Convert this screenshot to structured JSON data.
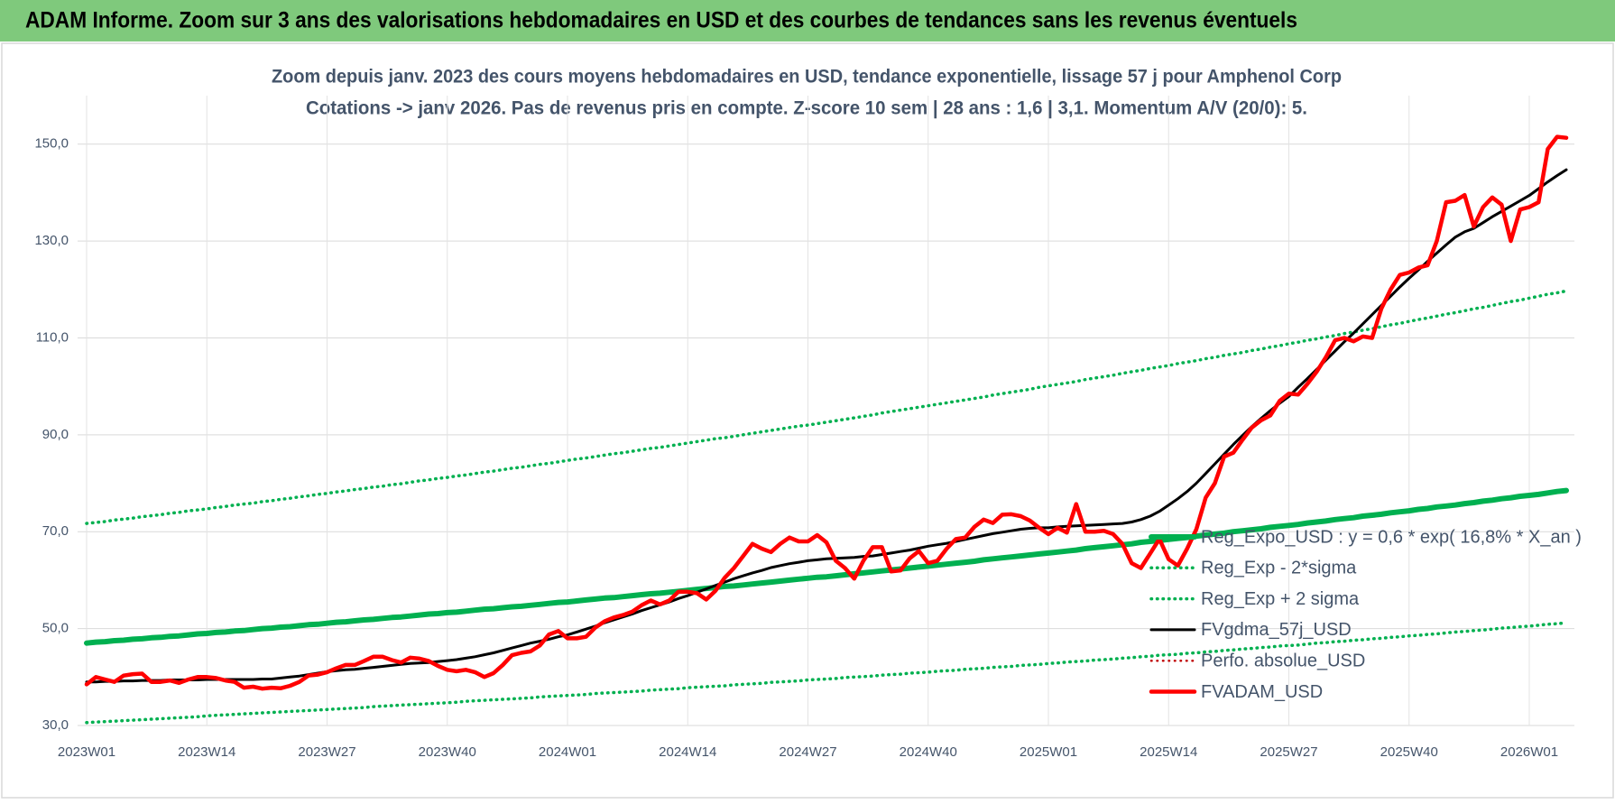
{
  "header": {
    "title": "ADAM Informe. Zoom sur 3 ans des valorisations hebdomadaires en USD et des courbes de tendances sans les revenus éventuels"
  },
  "chart_data": {
    "type": "line",
    "title": "Zoom depuis janv. 2023 des cours moyens hebdomadaires en USD, tendance exponentielle, lissage 57 j pour Amphenol Corp",
    "subtitle": "Cotations -> janv 2026. Pas de revenus pris en compte. Z-score 10 sem | 28 ans : 1,6 | 3,1. Momentum A/V (20/0): 5.",
    "categories": [
      "2023W01",
      null,
      null,
      null,
      null,
      null,
      null,
      null,
      null,
      null,
      null,
      null,
      null,
      "2023W14",
      null,
      null,
      null,
      null,
      null,
      null,
      null,
      null,
      null,
      null,
      null,
      null,
      "2023W27",
      null,
      null,
      null,
      null,
      null,
      null,
      null,
      null,
      null,
      null,
      null,
      null,
      "2023W40",
      null,
      null,
      null,
      null,
      null,
      null,
      null,
      null,
      null,
      null,
      null,
      null,
      "2024W01",
      null,
      null,
      null,
      null,
      null,
      null,
      null,
      null,
      null,
      null,
      null,
      null,
      "2024W14",
      null,
      null,
      null,
      null,
      null,
      null,
      null,
      null,
      null,
      null,
      null,
      null,
      "2024W27",
      null,
      null,
      null,
      null,
      null,
      null,
      null,
      null,
      null,
      null,
      null,
      null,
      "2024W40",
      null,
      null,
      null,
      null,
      null,
      null,
      null,
      null,
      null,
      null,
      null,
      null,
      "2025W01",
      null,
      null,
      null,
      null,
      null,
      null,
      null,
      null,
      null,
      null,
      null,
      null,
      "2025W14",
      null,
      null,
      null,
      null,
      null,
      null,
      null,
      null,
      null,
      null,
      null,
      null,
      "2025W27",
      null,
      null,
      null,
      null,
      null,
      null,
      null,
      null,
      null,
      null,
      null,
      null,
      "2025W40",
      null,
      null,
      null,
      null,
      null,
      null,
      null,
      null,
      null,
      null,
      null,
      null,
      "2026W01",
      null,
      null,
      null,
      null
    ],
    "ylim": [
      30,
      160
    ],
    "yticks": [
      {
        "value": 30,
        "label": "30,0"
      },
      {
        "value": 50,
        "label": "50,0"
      },
      {
        "value": 70,
        "label": "70,0"
      },
      {
        "value": 90,
        "label": "90,0"
      },
      {
        "value": 110,
        "label": "110,0"
      },
      {
        "value": 130,
        "label": "130,0"
      },
      {
        "value": 150,
        "label": "150,0"
      }
    ],
    "grid": true,
    "legend": "right",
    "series": [
      {
        "name": "Reg_Expo_USD : y = 0,6 * exp( 16,8% *  X_an )",
        "color": "#00b050",
        "line_style": "solid",
        "values": [
          47.0,
          47.2,
          47.3,
          47.5,
          47.6,
          47.8,
          47.9,
          48.1,
          48.2,
          48.4,
          48.5,
          48.7,
          48.9,
          49.0,
          49.2,
          49.3,
          49.5,
          49.6,
          49.8,
          50.0,
          50.1,
          50.3,
          50.4,
          50.6,
          50.8,
          50.9,
          51.1,
          51.3,
          51.4,
          51.6,
          51.8,
          51.9,
          52.1,
          52.3,
          52.4,
          52.6,
          52.8,
          53.0,
          53.1,
          53.3,
          53.4,
          53.6,
          53.8,
          54.0,
          54.1,
          54.3,
          54.5,
          54.6,
          54.8,
          55.0,
          55.2,
          55.4,
          55.5,
          55.7,
          55.9,
          56.1,
          56.3,
          56.4,
          56.6,
          56.8,
          57.0,
          57.2,
          57.3,
          57.5,
          57.7,
          57.9,
          58.1,
          58.3,
          58.5,
          58.7,
          58.8,
          59.0,
          59.2,
          59.4,
          59.6,
          59.8,
          60.0,
          60.2,
          60.4,
          60.6,
          60.7,
          60.9,
          61.1,
          61.3,
          61.5,
          61.7,
          61.9,
          62.1,
          62.3,
          62.5,
          62.7,
          62.9,
          63.1,
          63.3,
          63.5,
          63.7,
          63.9,
          64.2,
          64.4,
          64.6,
          64.8,
          65.0,
          65.2,
          65.4,
          65.6,
          65.8,
          66.0,
          66.2,
          66.5,
          66.7,
          66.9,
          67.1,
          67.3,
          67.5,
          67.8,
          68.0,
          68.2,
          68.4,
          68.6,
          68.8,
          69.1,
          69.3,
          69.5,
          69.7,
          70.0,
          70.2,
          70.4,
          70.6,
          70.9,
          71.1,
          71.3,
          71.5,
          71.8,
          72.0,
          72.2,
          72.5,
          72.7,
          72.9,
          73.2,
          73.4,
          73.6,
          73.9,
          74.1,
          74.3,
          74.6,
          74.8,
          75.1,
          75.3,
          75.5,
          75.8,
          76.0,
          76.3,
          76.5,
          76.8,
          77.0,
          77.3,
          77.5,
          77.7,
          78.0,
          78.3,
          78.5
        ]
      },
      {
        "name": "Reg_Exp - 2*sigma",
        "color": "#00b050",
        "line_style": "dotted",
        "values": [
          30.6,
          30.7,
          30.8,
          30.9,
          31.0,
          31.1,
          31.2,
          31.3,
          31.4,
          31.5,
          31.6,
          31.7,
          31.8,
          32.0,
          32.1,
          32.2,
          32.3,
          32.4,
          32.5,
          32.6,
          32.7,
          32.8,
          32.9,
          33.0,
          33.1,
          33.2,
          33.3,
          33.4,
          33.5,
          33.6,
          33.7,
          33.9,
          34.0,
          34.1,
          34.2,
          34.3,
          34.4,
          34.5,
          34.6,
          34.7,
          34.8,
          35.0,
          35.1,
          35.2,
          35.3,
          35.4,
          35.5,
          35.6,
          35.7,
          35.9,
          36.0,
          36.1,
          36.2,
          36.3,
          36.4,
          36.6,
          36.7,
          36.8,
          36.9,
          37.0,
          37.1,
          37.3,
          37.4,
          37.5,
          37.6,
          37.8,
          37.9,
          38.0,
          38.1,
          38.2,
          38.4,
          38.5,
          38.6,
          38.7,
          38.9,
          39.0,
          39.1,
          39.2,
          39.4,
          39.5,
          39.6,
          39.7,
          39.9,
          40.0,
          40.1,
          40.2,
          40.4,
          40.5,
          40.6,
          40.8,
          40.9,
          41.0,
          41.2,
          41.3,
          41.4,
          41.6,
          41.7,
          41.8,
          42.0,
          42.1,
          42.2,
          42.4,
          42.5,
          42.6,
          42.8,
          42.9,
          43.1,
          43.2,
          43.3,
          43.5,
          43.6,
          43.7,
          43.9,
          44.0,
          44.2,
          44.3,
          44.5,
          44.6,
          44.7,
          44.9,
          45.0,
          45.2,
          45.3,
          45.5,
          45.6,
          45.8,
          45.9,
          46.1,
          46.2,
          46.4,
          46.5,
          46.6,
          46.8,
          47.0,
          47.1,
          47.3,
          47.4,
          47.6,
          47.7,
          47.9,
          48.0,
          48.2,
          48.3,
          48.5,
          48.6,
          48.8,
          48.9,
          49.1,
          49.3,
          49.4,
          49.6,
          49.7,
          49.9,
          50.1,
          50.2,
          50.4,
          50.5,
          50.7,
          50.9,
          51.0,
          51.2
        ]
      },
      {
        "name": "Reg_Exp + 2 sigma",
        "color": "#00b050",
        "line_style": "dotted",
        "values": [
          71.7,
          71.9,
          72.1,
          72.4,
          72.6,
          72.8,
          73.1,
          73.3,
          73.5,
          73.8,
          74.0,
          74.3,
          74.5,
          74.7,
          75.0,
          75.2,
          75.5,
          75.7,
          75.9,
          76.2,
          76.4,
          76.7,
          76.9,
          77.2,
          77.4,
          77.7,
          77.9,
          78.2,
          78.4,
          78.7,
          78.9,
          79.2,
          79.4,
          79.7,
          79.9,
          80.2,
          80.5,
          80.7,
          81.0,
          81.2,
          81.5,
          81.7,
          82.0,
          82.3,
          82.5,
          82.8,
          83.1,
          83.3,
          83.6,
          83.9,
          84.1,
          84.4,
          84.7,
          85.0,
          85.2,
          85.5,
          85.8,
          86.1,
          86.3,
          86.6,
          86.9,
          87.2,
          87.4,
          87.7,
          88.0,
          88.3,
          88.6,
          88.9,
          89.2,
          89.4,
          89.7,
          90.0,
          90.3,
          90.6,
          90.9,
          91.2,
          91.5,
          91.8,
          92.0,
          92.3,
          92.6,
          92.9,
          93.2,
          93.5,
          93.8,
          94.1,
          94.5,
          94.8,
          95.1,
          95.4,
          95.7,
          96.0,
          96.3,
          96.6,
          96.9,
          97.2,
          97.5,
          97.8,
          98.2,
          98.5,
          98.8,
          99.1,
          99.4,
          99.8,
          100.1,
          100.4,
          100.7,
          101.0,
          101.4,
          101.7,
          102.0,
          102.3,
          102.7,
          103.0,
          103.3,
          103.7,
          104.0,
          104.3,
          104.7,
          105.0,
          105.3,
          105.7,
          106.0,
          106.4,
          106.7,
          107.0,
          107.4,
          107.7,
          108.1,
          108.4,
          108.8,
          109.1,
          109.5,
          109.8,
          110.2,
          110.5,
          110.9,
          111.2,
          111.6,
          111.9,
          112.3,
          112.7,
          113.0,
          113.4,
          113.8,
          114.1,
          114.5,
          114.9,
          115.2,
          115.6,
          116.0,
          116.3,
          116.7,
          117.1,
          117.5,
          117.8,
          118.2,
          118.6,
          119.0,
          119.3,
          119.7
        ]
      },
      {
        "name": "FVgdma_57j_USD",
        "color": "#000000",
        "line_style": "solid",
        "values": [
          39.0,
          39.0,
          39.1,
          39.1,
          39.2,
          39.2,
          39.3,
          39.3,
          39.3,
          39.4,
          39.4,
          39.4,
          39.4,
          39.5,
          39.5,
          39.5,
          39.5,
          39.5,
          39.5,
          39.6,
          39.6,
          39.8,
          40.0,
          40.2,
          40.5,
          40.8,
          41.1,
          41.3,
          41.5,
          41.6,
          41.8,
          42.0,
          42.2,
          42.4,
          42.6,
          42.8,
          42.9,
          43.0,
          43.2,
          43.4,
          43.6,
          43.9,
          44.2,
          44.6,
          45.0,
          45.5,
          46.0,
          46.5,
          47.0,
          47.4,
          47.8,
          48.3,
          48.7,
          49.3,
          49.9,
          50.5,
          51.2,
          51.8,
          52.4,
          53.0,
          53.7,
          54.3,
          54.9,
          55.5,
          56.2,
          56.8,
          57.5,
          58.2,
          58.9,
          59.6,
          60.3,
          60.9,
          61.5,
          62.0,
          62.6,
          63.0,
          63.4,
          63.7,
          64.0,
          64.2,
          64.4,
          64.5,
          64.6,
          64.7,
          64.9,
          65.0,
          65.3,
          65.6,
          65.9,
          66.2,
          66.6,
          67.0,
          67.3,
          67.6,
          68.0,
          68.4,
          68.8,
          69.2,
          69.6,
          69.9,
          70.2,
          70.5,
          70.7,
          70.8,
          70.8,
          71.0,
          71.1,
          71.2,
          71.3,
          71.4,
          71.5,
          71.6,
          71.7,
          72.0,
          72.5,
          73.2,
          74.2,
          75.5,
          76.8,
          78.3,
          80.0,
          82.0,
          84.0,
          86.0,
          88.0,
          89.9,
          91.7,
          93.4,
          95.0,
          96.5,
          97.9,
          99.8,
          101.6,
          103.5,
          105.4,
          107.3,
          109.2,
          111.0,
          112.9,
          114.8,
          116.7,
          118.6,
          120.5,
          122.3,
          124.0,
          125.8,
          127.5,
          129.2,
          130.8,
          131.9,
          132.6,
          133.8,
          135.0,
          136.1,
          137.2,
          138.3,
          139.4,
          140.8,
          142.2,
          143.5,
          144.7
        ]
      },
      {
        "name": "Perfo. absolue_USD",
        "color": "#c00000",
        "line_style": "dotted",
        "values": [
          null,
          null,
          null,
          null,
          null,
          null,
          null,
          null,
          null,
          null,
          null,
          null,
          null,
          null,
          null,
          null,
          null,
          null,
          null,
          null,
          null,
          null,
          null,
          null,
          null,
          null,
          null,
          null,
          null,
          null,
          null,
          null,
          null,
          null,
          null,
          null,
          null,
          null,
          null,
          null,
          null,
          null,
          null,
          null,
          null,
          null,
          null,
          null,
          null,
          null,
          null,
          null,
          null,
          null,
          null,
          null,
          null,
          null,
          null,
          null,
          null,
          null,
          null,
          null,
          null,
          null,
          null,
          null,
          null,
          null,
          null,
          null,
          null,
          null,
          null,
          null,
          null,
          null,
          null,
          null,
          null,
          null,
          null,
          null,
          null,
          null,
          null,
          null,
          null,
          null,
          null,
          null,
          null,
          null,
          null,
          null,
          null,
          null,
          null,
          null,
          null,
          null,
          null,
          null,
          null,
          null,
          null,
          null,
          null,
          null,
          null,
          null,
          null,
          null,
          null,
          null,
          null,
          null,
          null,
          null,
          null,
          null,
          null,
          null,
          null,
          null,
          null,
          null,
          null,
          null,
          null,
          null,
          null,
          null,
          null,
          null,
          null,
          null,
          null,
          null,
          null,
          null,
          null,
          null,
          null,
          null,
          null,
          null,
          null,
          null,
          null,
          null,
          null,
          null,
          null,
          null,
          null,
          null,
          null,
          null,
          null
        ]
      },
      {
        "name": "FVADAM_USD",
        "color": "#ff0000",
        "line_style": "solid",
        "values": [
          38.5,
          40,
          39.5,
          39,
          40.3,
          40.6,
          40.7,
          39,
          39,
          39.3,
          38.8,
          39.5,
          40,
          40,
          39.8,
          39.3,
          39,
          37.8,
          38,
          37.6,
          37.8,
          37.7,
          38.2,
          39,
          40.3,
          40.5,
          41,
          41.8,
          42.5,
          42.5,
          43.3,
          44.2,
          44.2,
          43.5,
          43,
          44,
          43.8,
          43.3,
          42.3,
          41.5,
          41.2,
          41.5,
          41,
          40,
          40.8,
          42.5,
          44.5,
          45,
          45.3,
          46.5,
          48.8,
          49.5,
          48,
          48,
          48.3,
          50.2,
          51.5,
          52.3,
          52.8,
          53.5,
          54.8,
          55.8,
          55,
          55.8,
          57.6,
          57.6,
          57.3,
          56,
          57.8,
          60.5,
          62.5,
          65,
          67.5,
          66.5,
          65.8,
          67.5,
          68.8,
          68,
          68,
          69.3,
          67.8,
          64,
          62.5,
          60.3,
          64,
          66.8,
          66.8,
          61.8,
          62,
          64.5,
          66,
          63.5,
          64,
          66.5,
          68.5,
          68.8,
          71,
          72.5,
          71.8,
          73.5,
          73.6,
          73.2,
          72.3,
          70.8,
          69.5,
          70.8,
          69.8,
          75.7,
          70,
          70,
          70.2,
          69.5,
          67.5,
          63.5,
          62.5,
          65.5,
          68.5,
          64.3,
          63,
          66.5,
          70.5,
          77,
          80,
          85.5,
          86.3,
          89,
          91.5,
          93,
          94,
          97,
          98.5,
          98.3,
          100.5,
          103,
          106,
          109.5,
          110,
          109.3,
          110.3,
          110,
          116,
          120,
          123,
          123.5,
          124.5,
          125,
          130,
          138,
          138.3,
          139.5,
          133,
          137,
          139,
          137.5,
          130,
          136.5,
          137,
          138,
          149,
          151.5,
          151.3
        ]
      }
    ]
  }
}
